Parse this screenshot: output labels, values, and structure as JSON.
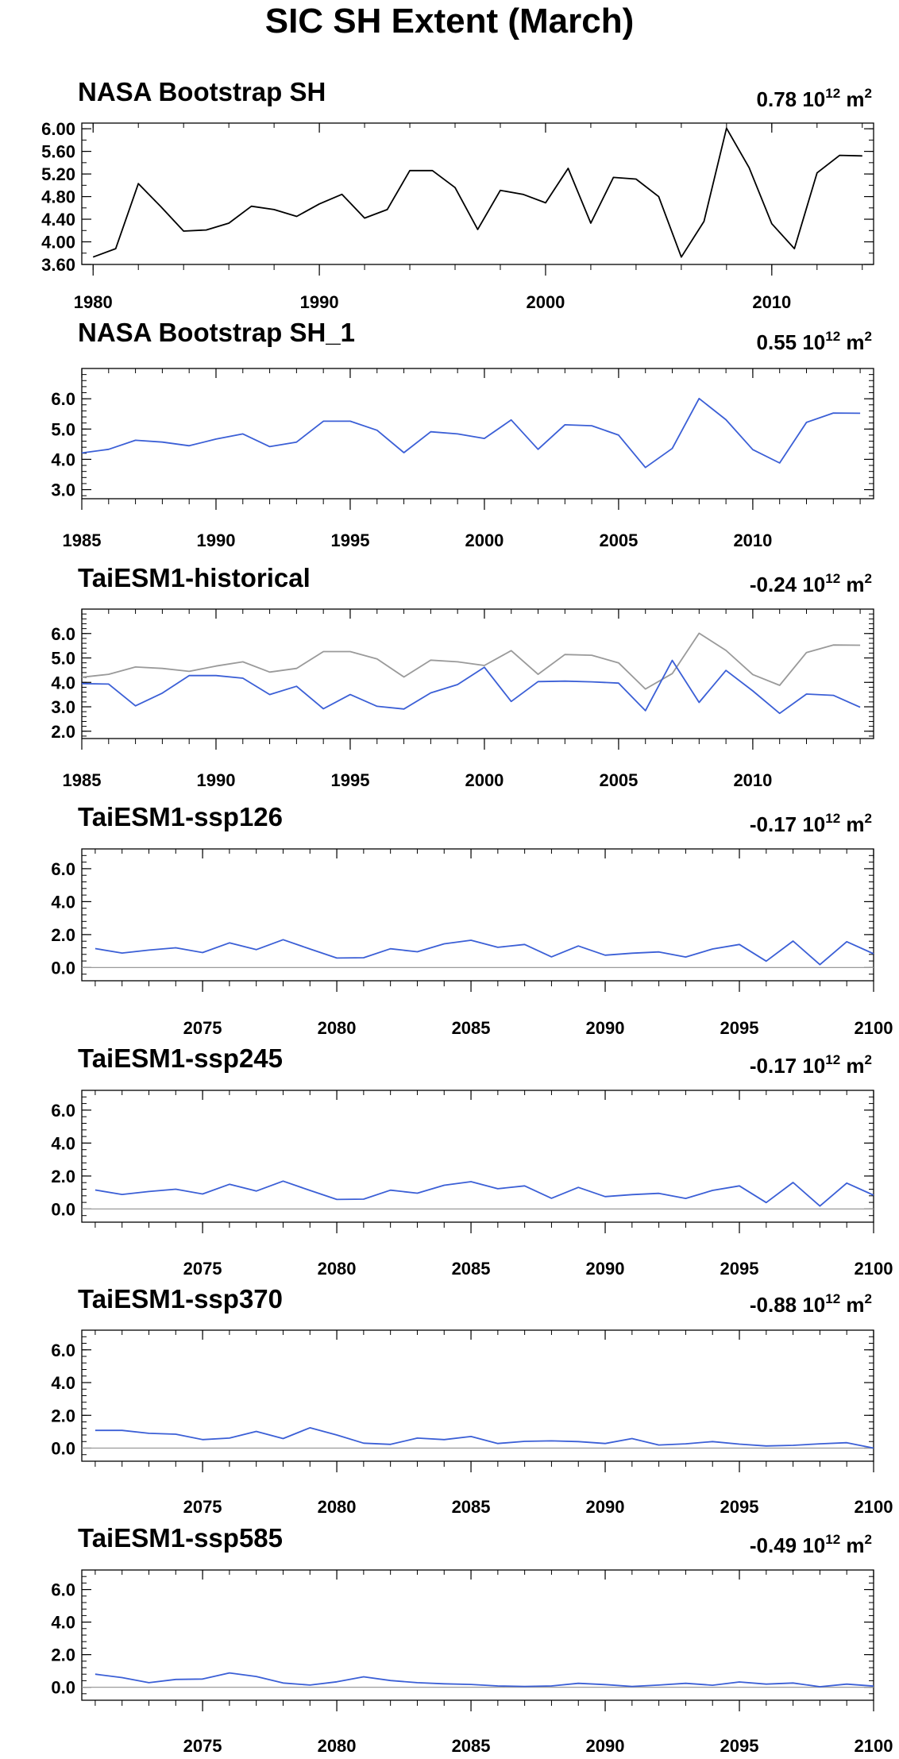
{
  "figure_title": "SIC SH Extent (March)",
  "colors": {
    "obs": "#000000",
    "model": "#3b5fd6",
    "ref": "#9a9a9a",
    "zero_line": "#9a9a9a"
  },
  "chart_data": [
    {
      "type": "line",
      "title": "NASA Bootstrap SH",
      "annotation": {
        "value": "0.78",
        "base": "10",
        "exp": "12",
        "unit": "m",
        "unit_exp": "2"
      },
      "xlim": [
        1979.5,
        2014.5
      ],
      "ylim": [
        3.6,
        6.1
      ],
      "yticks": [
        3.6,
        4.0,
        4.4,
        4.8,
        5.2,
        5.6,
        6.0
      ],
      "ytick_labels": [
        "3.60",
        "4.00",
        "4.40",
        "4.80",
        "5.20",
        "5.60",
        "6.00"
      ],
      "yminor_step": 0.2,
      "xticks": [
        1980,
        1990,
        2000,
        2010
      ],
      "xminor_step": 2,
      "zero_line": false,
      "series": [
        {
          "color": "obs",
          "x_start": 1980,
          "values": [
            3.73,
            3.88,
            5.03,
            4.62,
            4.19,
            4.21,
            4.33,
            4.63,
            4.57,
            4.45,
            4.67,
            4.84,
            4.42,
            4.57,
            5.26,
            5.26,
            4.96,
            4.22,
            4.91,
            4.84,
            4.69,
            5.3,
            4.33,
            5.14,
            5.11,
            4.8,
            3.73,
            4.36,
            6.01,
            5.31,
            4.32,
            3.88,
            5.22,
            5.53,
            5.52
          ]
        }
      ]
    },
    {
      "type": "line",
      "title": "NASA Bootstrap SH_1",
      "annotation": {
        "value": "0.55",
        "base": "10",
        "exp": "12",
        "unit": "m",
        "unit_exp": "2"
      },
      "xlim": [
        1985,
        2014.5
      ],
      "ylim": [
        2.7,
        7.0
      ],
      "yticks": [
        3.0,
        4.0,
        5.0,
        6.0
      ],
      "ytick_labels": [
        "3.0",
        "4.0",
        "5.0",
        "6.0"
      ],
      "yminor_step": 0.2,
      "xticks": [
        1985,
        1990,
        1995,
        2000,
        2005,
        2010
      ],
      "xminor_step": 1,
      "zero_line": false,
      "series": [
        {
          "color": "model",
          "x_start": 1985,
          "values": [
            4.21,
            4.33,
            4.63,
            4.57,
            4.45,
            4.67,
            4.84,
            4.42,
            4.57,
            5.26,
            5.26,
            4.96,
            4.22,
            4.91,
            4.84,
            4.69,
            5.3,
            4.33,
            5.14,
            5.11,
            4.8,
            3.73,
            4.36,
            6.01,
            5.31,
            4.32,
            3.88,
            5.22,
            5.53,
            5.52
          ]
        }
      ]
    },
    {
      "type": "line",
      "title": "TaiESM1-historical",
      "annotation": {
        "value": "-0.24",
        "base": "10",
        "exp": "12",
        "unit": "m",
        "unit_exp": "2"
      },
      "xlim": [
        1985,
        2014.5
      ],
      "ylim": [
        1.7,
        7.0
      ],
      "yticks": [
        2.0,
        3.0,
        4.0,
        5.0,
        6.0
      ],
      "ytick_labels": [
        "2.0",
        "3.0",
        "4.0",
        "5.0",
        "6.0"
      ],
      "yminor_step": 0.2,
      "xticks": [
        1985,
        1990,
        1995,
        2000,
        2005,
        2010
      ],
      "xminor_step": 1,
      "zero_line": false,
      "series": [
        {
          "color": "ref",
          "x_start": 1985,
          "values": [
            4.21,
            4.33,
            4.63,
            4.57,
            4.45,
            4.67,
            4.84,
            4.42,
            4.57,
            5.26,
            5.26,
            4.96,
            4.22,
            4.91,
            4.84,
            4.69,
            5.3,
            4.33,
            5.14,
            5.11,
            4.8,
            3.73,
            4.36,
            6.01,
            5.31,
            4.32,
            3.88,
            5.22,
            5.53,
            5.52
          ]
        },
        {
          "color": "model",
          "x_start": 1985,
          "values": [
            3.95,
            3.93,
            3.04,
            3.56,
            4.28,
            4.28,
            4.17,
            3.5,
            3.84,
            2.92,
            3.5,
            3.02,
            2.91,
            3.57,
            3.91,
            4.62,
            3.22,
            4.03,
            4.05,
            4.02,
            3.97,
            2.84,
            4.9,
            3.18,
            4.49,
            3.65,
            2.73,
            3.52,
            3.47,
            2.98
          ]
        }
      ]
    },
    {
      "type": "line",
      "title": "TaiESM1-ssp126",
      "annotation": {
        "value": "-0.17",
        "base": "10",
        "exp": "12",
        "unit": "m",
        "unit_exp": "2"
      },
      "xlim": [
        2070.5,
        2100
      ],
      "ylim": [
        -0.8,
        7.2
      ],
      "yticks": [
        0.0,
        2.0,
        4.0,
        6.0
      ],
      "ytick_labels": [
        "0.0",
        "2.0",
        "4.0",
        "6.0"
      ],
      "yminor_step": 0.4,
      "xticks": [
        2075,
        2080,
        2085,
        2090,
        2095,
        2100
      ],
      "xminor_step": 1,
      "zero_line": true,
      "series": [
        {
          "color": "model",
          "x_start": 2071,
          "values": [
            1.15,
            0.88,
            1.06,
            1.2,
            0.91,
            1.5,
            1.09,
            1.69,
            1.13,
            0.58,
            0.6,
            1.14,
            0.96,
            1.44,
            1.66,
            1.23,
            1.4,
            0.65,
            1.31,
            0.75,
            0.87,
            0.95,
            0.64,
            1.13,
            1.4,
            0.39,
            1.61,
            0.18,
            1.57,
            0.84
          ]
        }
      ]
    },
    {
      "type": "line",
      "title": "TaiESM1-ssp245",
      "annotation": {
        "value": "-0.17",
        "base": "10",
        "exp": "12",
        "unit": "m",
        "unit_exp": "2"
      },
      "xlim": [
        2070.5,
        2100
      ],
      "ylim": [
        -0.8,
        7.2
      ],
      "yticks": [
        0.0,
        2.0,
        4.0,
        6.0
      ],
      "ytick_labels": [
        "0.0",
        "2.0",
        "4.0",
        "6.0"
      ],
      "yminor_step": 0.4,
      "xticks": [
        2075,
        2080,
        2085,
        2090,
        2095,
        2100
      ],
      "xminor_step": 1,
      "zero_line": true,
      "series": [
        {
          "color": "model",
          "x_start": 2071,
          "values": [
            1.15,
            0.88,
            1.06,
            1.2,
            0.91,
            1.5,
            1.09,
            1.69,
            1.13,
            0.58,
            0.6,
            1.14,
            0.96,
            1.44,
            1.66,
            1.23,
            1.4,
            0.65,
            1.31,
            0.75,
            0.87,
            0.95,
            0.64,
            1.13,
            1.4,
            0.39,
            1.61,
            0.18,
            1.57,
            0.84
          ]
        }
      ]
    },
    {
      "type": "line",
      "title": "TaiESM1-ssp370",
      "annotation": {
        "value": "-0.88",
        "base": "10",
        "exp": "12",
        "unit": "m",
        "unit_exp": "2"
      },
      "xlim": [
        2070.5,
        2100
      ],
      "ylim": [
        -0.8,
        7.2
      ],
      "yticks": [
        0.0,
        2.0,
        4.0,
        6.0
      ],
      "ytick_labels": [
        "0.0",
        "2.0",
        "4.0",
        "6.0"
      ],
      "yminor_step": 0.4,
      "xticks": [
        2075,
        2080,
        2085,
        2090,
        2095,
        2100
      ],
      "xminor_step": 1,
      "zero_line": true,
      "series": [
        {
          "color": "model",
          "x_start": 2071,
          "values": [
            1.08,
            1.08,
            0.9,
            0.85,
            0.52,
            0.61,
            1.02,
            0.58,
            1.24,
            0.8,
            0.3,
            0.23,
            0.61,
            0.52,
            0.71,
            0.28,
            0.41,
            0.44,
            0.4,
            0.28,
            0.58,
            0.19,
            0.26,
            0.4,
            0.24,
            0.13,
            0.17,
            0.26,
            0.33,
            0.0
          ]
        }
      ]
    },
    {
      "type": "line",
      "title": "TaiESM1-ssp585",
      "annotation": {
        "value": "-0.49",
        "base": "10",
        "exp": "12",
        "unit": "m",
        "unit_exp": "2"
      },
      "xlim": [
        2070.5,
        2100
      ],
      "ylim": [
        -0.8,
        7.2
      ],
      "yticks": [
        0.0,
        2.0,
        4.0,
        6.0
      ],
      "ytick_labels": [
        "0.0",
        "2.0",
        "4.0",
        "6.0"
      ],
      "yminor_step": 0.4,
      "xticks": [
        2075,
        2080,
        2085,
        2090,
        2095,
        2100
      ],
      "xminor_step": 1,
      "zero_line": true,
      "series": [
        {
          "color": "model",
          "x_start": 2071,
          "values": [
            0.8,
            0.59,
            0.28,
            0.48,
            0.5,
            0.88,
            0.66,
            0.26,
            0.13,
            0.33,
            0.64,
            0.41,
            0.28,
            0.21,
            0.17,
            0.08,
            0.05,
            0.08,
            0.24,
            0.16,
            0.05,
            0.13,
            0.24,
            0.12,
            0.32,
            0.19,
            0.26,
            0.03,
            0.19,
            0.07
          ]
        }
      ]
    }
  ]
}
